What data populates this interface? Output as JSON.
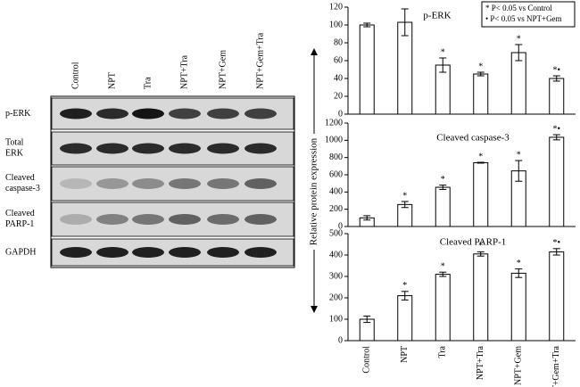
{
  "y_label": "Relative protein expression",
  "blot": {
    "lanes": [
      "Control",
      "NPT",
      "Tra",
      "NPT+Tra",
      "NPT+Gem",
      "NPT+Gem+Tra"
    ],
    "rows": [
      "p-ERK",
      "Total ERK",
      "Cleaved caspase-3",
      "Cleaved PARP-1",
      "GAPDH"
    ]
  },
  "chart_data": [
    {
      "type": "bar",
      "title": "p-ERK",
      "values": [
        100,
        103,
        55,
        45,
        69,
        40
      ],
      "errors": [
        2,
        15,
        8,
        2,
        9,
        3
      ],
      "annotations": [
        null,
        null,
        "*",
        "*",
        "*",
        "*•"
      ],
      "ylim": [
        0,
        120
      ],
      "yticks": [
        0,
        20,
        40,
        60,
        80,
        100,
        120
      ],
      "legend": [
        "* P< 0.05 vs Control",
        "• P< 0.05 vs NPT+Gem"
      ],
      "color": "#ffffff"
    },
    {
      "type": "bar",
      "title": "Cleaved caspase-3",
      "values": [
        100,
        255,
        455,
        740,
        645,
        1035
      ],
      "errors": [
        25,
        35,
        25,
        5,
        120,
        30
      ],
      "annotations": [
        null,
        "*",
        "*",
        "*",
        "*",
        "*•"
      ],
      "ylim": [
        0,
        1200
      ],
      "yticks": [
        0,
        200,
        400,
        600,
        800,
        1000,
        1200
      ],
      "color": "#ffffff"
    },
    {
      "type": "bar",
      "title": "Cleaved PARP-1",
      "categories": [
        "Control",
        "NPT",
        "Tra",
        "NPT+Tra",
        "NPT+Gem",
        "NPT+Gem+Tra"
      ],
      "values": [
        100,
        210,
        310,
        405,
        315,
        415
      ],
      "errors": [
        15,
        20,
        10,
        10,
        20,
        15
      ],
      "annotations": [
        null,
        "*",
        "*",
        "*",
        "*",
        "*•"
      ],
      "ylim": [
        0,
        500
      ],
      "yticks": [
        0,
        100,
        200,
        300,
        400,
        500
      ],
      "color": "#ffffff"
    }
  ]
}
